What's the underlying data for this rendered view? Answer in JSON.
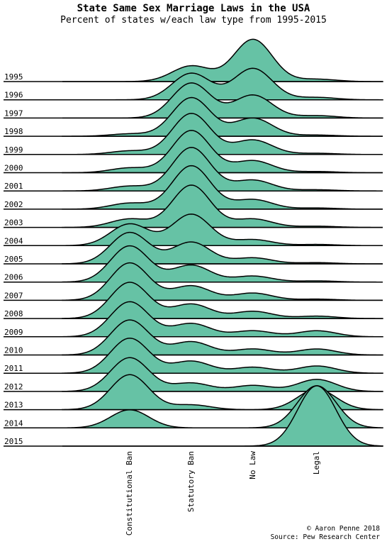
{
  "chart_data": {
    "type": "ridgeline",
    "title": "State Same Sex Marriage Laws in the USA",
    "subtitle": "Percent of states w/each law type from 1995-2015",
    "categories": [
      "Constitutional Ban",
      "Statutory Ban",
      "No Law",
      "Legal"
    ],
    "color": "#66c2a5",
    "series": [
      {
        "name": "1995",
        "values": [
          0,
          26,
          70,
          4
        ]
      },
      {
        "name": "1996",
        "values": [
          0,
          44,
          52,
          4
        ]
      },
      {
        "name": "1997",
        "values": [
          0,
          58,
          38,
          4
        ]
      },
      {
        "name": "1998",
        "values": [
          4,
          64,
          30,
          2
        ]
      },
      {
        "name": "1999",
        "values": [
          6,
          68,
          24,
          2
        ]
      },
      {
        "name": "2000",
        "values": [
          8,
          70,
          20,
          2
        ]
      },
      {
        "name": "2001",
        "values": [
          8,
          72,
          18,
          2
        ]
      },
      {
        "name": "2002",
        "values": [
          10,
          72,
          16,
          2
        ]
      },
      {
        "name": "2003",
        "values": [
          14,
          70,
          14,
          2
        ]
      },
      {
        "name": "2004",
        "values": [
          36,
          52,
          10,
          2
        ]
      },
      {
        "name": "2005",
        "values": [
          52,
          36,
          10,
          2
        ]
      },
      {
        "name": "2006",
        "values": [
          60,
          28,
          10,
          2
        ]
      },
      {
        "name": "2007",
        "values": [
          62,
          24,
          12,
          2
        ]
      },
      {
        "name": "2008",
        "values": [
          60,
          24,
          12,
          4
        ]
      },
      {
        "name": "2009",
        "values": [
          58,
          22,
          10,
          10
        ]
      },
      {
        "name": "2010",
        "values": [
          58,
          22,
          10,
          10
        ]
      },
      {
        "name": "2011",
        "values": [
          58,
          20,
          10,
          12
        ]
      },
      {
        "name": "2012",
        "values": [
          56,
          14,
          10,
          20
        ]
      },
      {
        "name": "2013",
        "values": [
          58,
          8,
          0,
          34
        ]
      },
      {
        "name": "2014",
        "values": [
          30,
          0,
          0,
          70
        ]
      },
      {
        "name": "2015",
        "values": [
          0,
          0,
          0,
          100
        ]
      }
    ],
    "credit": "© Aaron Penne 2018",
    "source": "Source: Pew Research Center"
  }
}
